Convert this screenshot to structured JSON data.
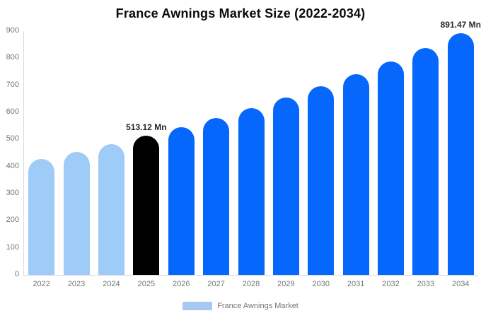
{
  "title": "France Awnings Market Size (2022-2034)",
  "legend": {
    "label": "France Awnings Market",
    "swatch_color": "#a6c9f2",
    "position": "bottom"
  },
  "colors": {
    "historical_bar": "#9ecbf8",
    "highlight_bar": "#000000",
    "forecast_bar": "#0667fc",
    "axis_line": "#d9d9d9",
    "tick_text": "#757575",
    "annotation_text": "#262626",
    "title_text": "#0a0a0a",
    "background": "#ffffff"
  },
  "chart_data": {
    "type": "bar",
    "title": "France Awnings Market Size (2022-2034)",
    "series_name": "France Awnings Market",
    "unit": "Mn",
    "categories": [
      "2022",
      "2023",
      "2024",
      "2025",
      "2026",
      "2027",
      "2028",
      "2029",
      "2030",
      "2031",
      "2032",
      "2033",
      "2034"
    ],
    "values": [
      426.9,
      453.9,
      482.6,
      513.12,
      545.6,
      580.1,
      616.9,
      655.9,
      697.4,
      741.6,
      788.5,
      838.4,
      891.47
    ],
    "value_note": "2025 (513.12) and 2034 (891.47) are labeled on the chart; remaining values estimated from bar heights against the gridline scale",
    "bar_roles": [
      "historical",
      "historical",
      "historical",
      "highlight",
      "forecast",
      "forecast",
      "forecast",
      "forecast",
      "forecast",
      "forecast",
      "forecast",
      "forecast",
      "forecast"
    ],
    "annotations": [
      {
        "category": "2025",
        "label": "513.12 Mn"
      },
      {
        "category": "2034",
        "label": "891.47 Mn"
      }
    ],
    "xlabel": "",
    "ylabel": "",
    "ylim": [
      0,
      900
    ],
    "yticks": [
      0,
      100,
      200,
      300,
      400,
      500,
      600,
      700,
      800,
      900
    ],
    "grid": false,
    "legend_position": "bottom-center"
  }
}
